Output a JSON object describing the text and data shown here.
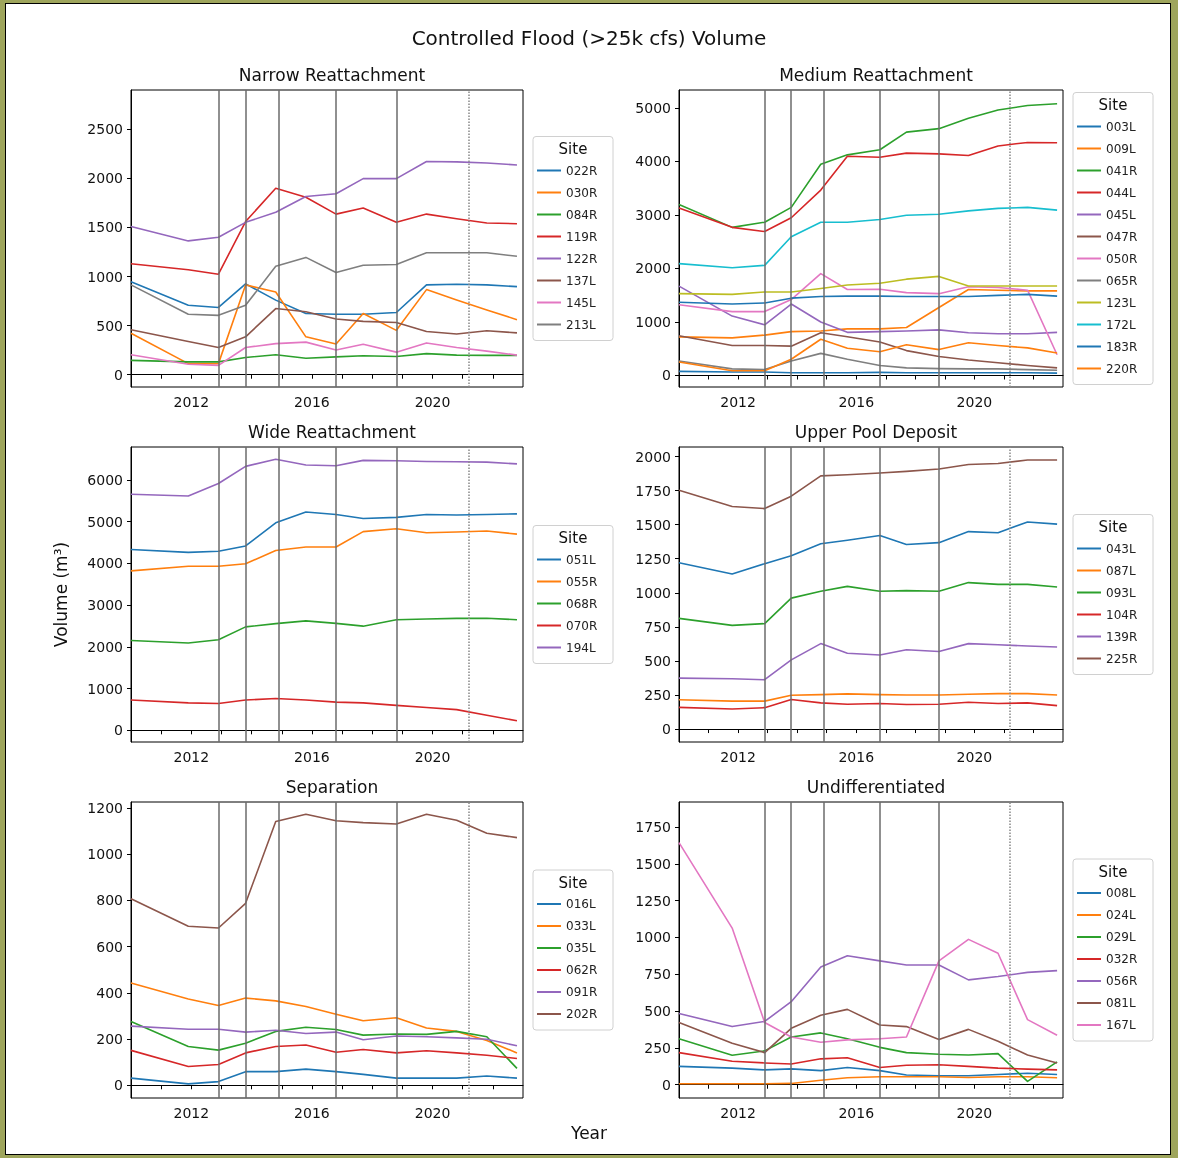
{
  "chart_data": [
    {
      "type": "line",
      "title": "Narrow Reattachment",
      "legend_title": "Site",
      "legend": "right",
      "annotations": [
        "Controlled Flood (>25k cfs) Volume"
      ],
      "x": [
        2010,
        2011.9,
        2012.9,
        2013.8,
        2014.8,
        2015.8,
        2016.8,
        2017.7,
        2018.8,
        2019.8,
        2020.8,
        2021.8,
        2022.8
      ],
      "xlim": [
        2010,
        2023
      ],
      "xticks": [
        {
          "value": 2011,
          "label": null
        },
        2012,
        {
          "value": 2013,
          "label": null
        },
        {
          "value": 2014,
          "label": null
        },
        {
          "value": 2015,
          "label": null
        },
        2016,
        {
          "value": 2017,
          "label": null
        },
        {
          "value": 2018,
          "label": null
        },
        {
          "value": 2019,
          "label": null
        },
        2020,
        {
          "value": 2021,
          "label": null
        },
        {
          "value": 2022,
          "label": null
        }
      ],
      "ylim": [
        -125,
        2900
      ],
      "yticks": [
        0,
        500,
        1000,
        1500,
        2000,
        2500
      ],
      "ref_lines": [
        {
          "axis": "x",
          "value": 2012.9,
          "color": "#6b6b6b"
        },
        {
          "axis": "x",
          "value": 2013.8,
          "color": "#6b6b6b"
        },
        {
          "axis": "x",
          "value": 2014.9,
          "color": "#6b6b6b"
        },
        {
          "axis": "x",
          "value": 2016.8,
          "color": "#6b6b6b"
        },
        {
          "axis": "x",
          "value": 2018.8,
          "color": "#6b6b6b"
        },
        {
          "axis": "x",
          "value": 2021.2,
          "color": "#888888",
          "line_style": "dotted"
        }
      ],
      "series": [
        {
          "name": "022R",
          "color": "#1f77b4",
          "values": [
            947,
            707,
            685,
            925,
            760,
            623,
            616,
            616,
            634,
            915,
            922,
            915,
            897
          ]
        },
        {
          "name": "030R",
          "color": "#ff7f0e",
          "values": [
            423,
            113,
            113,
            915,
            842,
            386,
            313,
            623,
            452,
            867,
            760,
            660,
            561
          ]
        },
        {
          "name": "084R",
          "color": "#2ca02c",
          "values": [
            146,
            131,
            131,
            175,
            204,
            168,
            182,
            193,
            186,
            215,
            200,
            197,
            197
          ]
        },
        {
          "name": "119R",
          "color": "#d62728",
          "values": [
            1130,
            1070,
            1024,
            1560,
            1899,
            1808,
            1636,
            1698,
            1553,
            1636,
            1589,
            1545,
            1538
          ]
        },
        {
          "name": "122R",
          "color": "#9467bd",
          "values": [
            1509,
            1363,
            1400,
            1552,
            1655,
            1815,
            1844,
            1997,
            1997,
            2172,
            2168,
            2157,
            2136
          ]
        },
        {
          "name": "137L",
          "color": "#8c564b",
          "values": [
            459,
            339,
            277,
            386,
            674,
            641,
            568,
            543,
            532,
            441,
            415,
            448,
            426
          ]
        },
        {
          "name": "145L",
          "color": "#e377c2",
          "values": [
            204,
            106,
            95,
            277,
            317,
            332,
            251,
            310,
            230,
            324,
            277,
            240,
            200
          ]
        },
        {
          "name": "213L",
          "color": "#7f7f7f",
          "values": [
            915,
            616,
            605,
            707,
            1104,
            1195,
            1042,
            1115,
            1122,
            1243,
            1243,
            1243,
            1206
          ]
        }
      ]
    },
    {
      "type": "line",
      "title": "Medium Reattachment",
      "legend_title": "Site",
      "legend": "right",
      "x": [
        2010,
        2011.8,
        2012.9,
        2013.8,
        2014.8,
        2015.7,
        2016.8,
        2017.7,
        2018.8,
        2019.8,
        2020.8,
        2021.8,
        2022.8
      ],
      "xlim": [
        2010,
        2023
      ],
      "xticks": [
        {
          "value": 2011,
          "label": null
        },
        2012,
        {
          "value": 2013,
          "label": null
        },
        {
          "value": 2014,
          "label": null
        },
        {
          "value": 2015,
          "label": null
        },
        2016,
        {
          "value": 2017,
          "label": null
        },
        {
          "value": 2018,
          "label": null
        },
        {
          "value": 2019,
          "label": null
        },
        2020,
        {
          "value": 2021,
          "label": null
        },
        {
          "value": 2022,
          "label": null
        }
      ],
      "ylim": [
        -215,
        5335
      ],
      "yticks": [
        0,
        1000,
        2000,
        3000,
        4000,
        5000
      ],
      "ref_lines": [
        {
          "axis": "x",
          "value": 2012.9,
          "color": "#6b6b6b"
        },
        {
          "axis": "x",
          "value": 2013.8,
          "color": "#6b6b6b"
        },
        {
          "axis": "x",
          "value": 2014.9,
          "color": "#6b6b6b"
        },
        {
          "axis": "x",
          "value": 2016.8,
          "color": "#6b6b6b"
        },
        {
          "axis": "x",
          "value": 2018.8,
          "color": "#6b6b6b"
        },
        {
          "axis": "x",
          "value": 2021.2,
          "color": "#888888",
          "line_style": "dotted"
        }
      ],
      "series": [
        {
          "name": "003L",
          "color": "#1f77b4",
          "values": [
            77,
            65,
            65,
            52,
            52,
            52,
            58,
            52,
            52,
            52,
            52,
            52,
            45
          ]
        },
        {
          "name": "009L",
          "color": "#ff7f0e",
          "values": [
            722,
            703,
            755,
            819,
            832,
            871,
            871,
            897,
            1271,
            1606,
            1594,
            1581,
            1581
          ]
        },
        {
          "name": "041R",
          "color": "#2ca02c",
          "values": [
            3194,
            2768,
            2865,
            3142,
            3948,
            4123,
            4219,
            4548,
            4613,
            4806,
            4961,
            5045,
            5077
          ]
        },
        {
          "name": "044L",
          "color": "#d62728",
          "values": [
            3129,
            2768,
            2690,
            2948,
            3465,
            4097,
            4077,
            4155,
            4142,
            4110,
            4290,
            4355,
            4348
          ]
        },
        {
          "name": "045L",
          "color": "#9467bd",
          "values": [
            1671,
            1110,
            948,
            1335,
            1000,
            806,
            819,
            832,
            852,
            800,
            781,
            781,
            806
          ]
        },
        {
          "name": "047R",
          "color": "#8c564b",
          "values": [
            742,
            561,
            561,
            548,
            800,
            723,
            626,
            465,
            355,
            290,
            239,
            187,
            142
          ]
        },
        {
          "name": "050R",
          "color": "#e377c2",
          "values": [
            1323,
            1194,
            1194,
            1419,
            1903,
            1606,
            1613,
            1548,
            1529,
            1658,
            1645,
            1594,
            387
          ]
        },
        {
          "name": "065R",
          "color": "#7f7f7f",
          "values": [
            271,
            123,
            110,
            271,
            413,
            303,
            187,
            142,
            129,
            123,
            123,
            110,
            97
          ]
        },
        {
          "name": "123L",
          "color": "#bcbd22",
          "values": [
            1529,
            1516,
            1561,
            1561,
            1626,
            1690,
            1723,
            1800,
            1852,
            1671,
            1671,
            1671,
            1671
          ]
        },
        {
          "name": "172L",
          "color": "#17becf",
          "values": [
            2090,
            2013,
            2058,
            2594,
            2865,
            2865,
            2916,
            2994,
            3013,
            3077,
            3123,
            3142,
            3090
          ]
        },
        {
          "name": "183R",
          "color": "#1f77b4",
          "values": [
            1368,
            1335,
            1355,
            1445,
            1477,
            1484,
            1484,
            1477,
            1477,
            1477,
            1497,
            1516,
            1484
          ]
        },
        {
          "name": "220R",
          "color": "#ff7f0e",
          "values": [
            252,
            90,
            90,
            303,
            677,
            510,
            445,
            574,
            484,
            613,
            561,
            516,
            419
          ]
        }
      ]
    },
    {
      "type": "line",
      "title": "Wide Reattachment",
      "legend_title": "Site",
      "legend": "right",
      "ylabel": "Volume (m³)",
      "x": [
        2010,
        2011.9,
        2012.9,
        2013.8,
        2014.8,
        2015.8,
        2016.8,
        2017.7,
        2018.8,
        2019.8,
        2020.8,
        2021.8,
        2022.8
      ],
      "xlim": [
        2010,
        2023
      ],
      "xticks": [
        {
          "value": 2011,
          "label": null
        },
        2012,
        {
          "value": 2013,
          "label": null
        },
        {
          "value": 2014,
          "label": null
        },
        {
          "value": 2015,
          "label": null
        },
        2016,
        {
          "value": 2017,
          "label": null
        },
        {
          "value": 2018,
          "label": null
        },
        {
          "value": 2019,
          "label": null
        },
        2020,
        {
          "value": 2021,
          "label": null
        },
        {
          "value": 2022,
          "label": null
        }
      ],
      "ylim": [
        -280,
        6790
      ],
      "yticks": [
        0,
        1000,
        2000,
        3000,
        4000,
        5000,
        6000
      ],
      "ref_lines": [
        {
          "axis": "x",
          "value": 2012.9,
          "color": "#6b6b6b"
        },
        {
          "axis": "x",
          "value": 2013.8,
          "color": "#6b6b6b"
        },
        {
          "axis": "x",
          "value": 2014.9,
          "color": "#6b6b6b"
        },
        {
          "axis": "x",
          "value": 2016.8,
          "color": "#6b6b6b"
        },
        {
          "axis": "x",
          "value": 2018.8,
          "color": "#6b6b6b"
        },
        {
          "axis": "x",
          "value": 2021.2,
          "color": "#888888",
          "line_style": "dotted"
        }
      ],
      "series": [
        {
          "name": "051L",
          "color": "#1f77b4",
          "values": [
            4333,
            4265,
            4291,
            4419,
            4974,
            5231,
            5171,
            5077,
            5103,
            5171,
            5162,
            5171,
            5188
          ]
        },
        {
          "name": "055R",
          "color": "#ff7f0e",
          "values": [
            3821,
            3932,
            3932,
            3991,
            4308,
            4393,
            4393,
            4761,
            4829,
            4735,
            4752,
            4778,
            4701
          ]
        },
        {
          "name": "068R",
          "color": "#2ca02c",
          "values": [
            2154,
            2094,
            2171,
            2479,
            2556,
            2624,
            2564,
            2496,
            2650,
            2667,
            2684,
            2684,
            2650
          ]
        },
        {
          "name": "070R",
          "color": "#d62728",
          "values": [
            726,
            658,
            641,
            726,
            761,
            726,
            675,
            658,
            598,
            547,
            496,
            359,
            231
          ]
        },
        {
          "name": "194L",
          "color": "#9467bd",
          "values": [
            5658,
            5615,
            5915,
            6325,
            6496,
            6359,
            6342,
            6470,
            6462,
            6444,
            6436,
            6427,
            6385
          ]
        }
      ]
    },
    {
      "type": "line",
      "title": "Upper Pool Deposit",
      "legend_title": "Site",
      "legend": "right",
      "x": [
        2010,
        2011.8,
        2012.9,
        2013.8,
        2014.8,
        2015.7,
        2016.8,
        2017.7,
        2018.8,
        2019.8,
        2020.8,
        2021.8,
        2022.8
      ],
      "xlim": [
        2010,
        2023
      ],
      "xticks": [
        {
          "value": 2011,
          "label": null
        },
        2012,
        {
          "value": 2013,
          "label": null
        },
        {
          "value": 2014,
          "label": null
        },
        {
          "value": 2015,
          "label": null
        },
        2016,
        {
          "value": 2017,
          "label": null
        },
        {
          "value": 2018,
          "label": null
        },
        {
          "value": 2019,
          "label": null
        },
        2020,
        {
          "value": 2021,
          "label": null
        },
        {
          "value": 2022,
          "label": null
        }
      ],
      "ylim": [
        -95,
        2070
      ],
      "yticks": [
        0,
        250,
        500,
        750,
        1000,
        1250,
        1500,
        1750,
        2000
      ],
      "ref_lines": [
        {
          "axis": "x",
          "value": 2012.9,
          "color": "#6b6b6b"
        },
        {
          "axis": "x",
          "value": 2013.8,
          "color": "#6b6b6b"
        },
        {
          "axis": "x",
          "value": 2014.9,
          "color": "#6b6b6b"
        },
        {
          "axis": "x",
          "value": 2016.8,
          "color": "#6b6b6b"
        },
        {
          "axis": "x",
          "value": 2018.8,
          "color": "#6b6b6b"
        },
        {
          "axis": "x",
          "value": 2021.2,
          "color": "#888888",
          "line_style": "dotted"
        }
      ],
      "series": [
        {
          "name": "043L",
          "color": "#1f77b4",
          "values": [
            1221,
            1138,
            1214,
            1272,
            1360,
            1386,
            1421,
            1355,
            1368,
            1449,
            1441,
            1520,
            1504
          ]
        },
        {
          "name": "087L",
          "color": "#ff7f0e",
          "values": [
            215,
            205,
            205,
            248,
            253,
            258,
            253,
            250,
            250,
            255,
            260,
            260,
            250
          ]
        },
        {
          "name": "093L",
          "color": "#2ca02c",
          "values": [
            812,
            761,
            774,
            961,
            1011,
            1047,
            1011,
            1016,
            1011,
            1075,
            1062,
            1062,
            1042
          ]
        },
        {
          "name": "104R",
          "color": "#d62728",
          "values": [
            159,
            147,
            157,
            217,
            192,
            182,
            187,
            180,
            182,
            197,
            187,
            192,
            172
          ]
        },
        {
          "name": "139R",
          "color": "#9467bd",
          "values": [
            374,
            369,
            362,
            508,
            627,
            556,
            544,
            582,
            569,
            627,
            619,
            609,
            602
          ]
        },
        {
          "name": "225R",
          "color": "#8c564b",
          "values": [
            1752,
            1633,
            1618,
            1709,
            1858,
            1866,
            1879,
            1891,
            1909,
            1942,
            1949,
            1975,
            1975
          ]
        }
      ]
    },
    {
      "type": "line",
      "title": "Separation",
      "legend_title": "Site",
      "legend": "right",
      "xlabel": "Year",
      "x": [
        2010,
        2011.9,
        2012.9,
        2013.8,
        2014.8,
        2015.8,
        2016.8,
        2017.7,
        2018.8,
        2019.8,
        2020.8,
        2021.8,
        2022.8
      ],
      "xlim": [
        2010,
        2023
      ],
      "xticks": [
        {
          "value": 2011,
          "label": null
        },
        2012,
        {
          "value": 2013,
          "label": null
        },
        {
          "value": 2014,
          "label": null
        },
        {
          "value": 2015,
          "label": null
        },
        2016,
        {
          "value": 2017,
          "label": null
        },
        {
          "value": 2018,
          "label": null
        },
        {
          "value": 2019,
          "label": null
        },
        2020,
        {
          "value": 2021,
          "label": null
        },
        {
          "value": 2022,
          "label": null
        }
      ],
      "ylim": [
        -55,
        1225
      ],
      "yticks": [
        0,
        200,
        400,
        600,
        800,
        1000,
        1200
      ],
      "ref_lines": [
        {
          "axis": "x",
          "value": 2012.9,
          "color": "#6b6b6b"
        },
        {
          "axis": "x",
          "value": 2013.8,
          "color": "#6b6b6b"
        },
        {
          "axis": "x",
          "value": 2014.9,
          "color": "#6b6b6b"
        },
        {
          "axis": "x",
          "value": 2016.8,
          "color": "#6b6b6b"
        },
        {
          "axis": "x",
          "value": 2018.8,
          "color": "#6b6b6b"
        },
        {
          "axis": "x",
          "value": 2021.2,
          "color": "#888888",
          "line_style": "dotted"
        }
      ],
      "series": [
        {
          "name": "016L",
          "color": "#1f77b4",
          "values": [
            31,
            6,
            16,
            59,
            59,
            70,
            59,
            47,
            31,
            31,
            31,
            40,
            31
          ]
        },
        {
          "name": "033L",
          "color": "#ff7f0e",
          "values": [
            442,
            373,
            345,
            377,
            365,
            341,
            307,
            279,
            292,
            248,
            233,
            194,
            140
          ]
        },
        {
          "name": "035L",
          "color": "#2ca02c",
          "values": [
            276,
            168,
            152,
            182,
            233,
            251,
            241,
            217,
            222,
            220,
            233,
            210,
            73
          ]
        },
        {
          "name": "062R",
          "color": "#d62728",
          "values": [
            151,
            81,
            90,
            140,
            168,
            174,
            143,
            155,
            140,
            149,
            140,
            130,
            116
          ]
        },
        {
          "name": "091R",
          "color": "#9467bd",
          "values": [
            256,
            242,
            242,
            230,
            238,
            224,
            230,
            197,
            213,
            210,
            205,
            199,
            171
          ]
        },
        {
          "name": "202R",
          "color": "#8c564b",
          "values": [
            807,
            688,
            680,
            787,
            1141,
            1172,
            1144,
            1136,
            1130,
            1172,
            1146,
            1090,
            1071
          ]
        }
      ]
    },
    {
      "type": "line",
      "title": "Undifferentiated",
      "legend_title": "Site",
      "legend": "right",
      "x": [
        2010,
        2011.8,
        2012.9,
        2013.8,
        2014.8,
        2015.7,
        2016.8,
        2017.7,
        2018.8,
        2019.8,
        2020.8,
        2021.8,
        2022.8
      ],
      "xlim": [
        2010,
        2023
      ],
      "xticks": [
        {
          "value": 2011,
          "label": null
        },
        2012,
        {
          "value": 2013,
          "label": null
        },
        {
          "value": 2014,
          "label": null
        },
        {
          "value": 2015,
          "label": null
        },
        2016,
        {
          "value": 2017,
          "label": null
        },
        {
          "value": 2018,
          "label": null
        },
        {
          "value": 2019,
          "label": null
        },
        2020,
        {
          "value": 2021,
          "label": null
        },
        {
          "value": 2022,
          "label": null
        }
      ],
      "ylim": [
        -90,
        1920
      ],
      "yticks": [
        0,
        250,
        500,
        750,
        1000,
        1250,
        1500,
        1750
      ],
      "ref_lines": [
        {
          "axis": "x",
          "value": 2012.9,
          "color": "#6b6b6b"
        },
        {
          "axis": "x",
          "value": 2013.8,
          "color": "#6b6b6b"
        },
        {
          "axis": "x",
          "value": 2014.9,
          "color": "#6b6b6b"
        },
        {
          "axis": "x",
          "value": 2016.8,
          "color": "#6b6b6b"
        },
        {
          "axis": "x",
          "value": 2018.8,
          "color": "#6b6b6b"
        },
        {
          "axis": "x",
          "value": 2021.2,
          "color": "#888888",
          "line_style": "dotted"
        }
      ],
      "series": [
        {
          "name": "008L",
          "color": "#1f77b4",
          "values": [
            125,
            113,
            101,
            108,
            96,
            117,
            96,
            66,
            61,
            61,
            70,
            78,
            70
          ]
        },
        {
          "name": "024L",
          "color": "#ff7f0e",
          "values": [
            7,
            7,
            7,
            9,
            31,
            47,
            54,
            54,
            54,
            49,
            54,
            54,
            47
          ]
        },
        {
          "name": "029L",
          "color": "#2ca02c",
          "values": [
            312,
            200,
            230,
            324,
            352,
            312,
            254,
            218,
            207,
            202,
            211,
            23,
            155
          ]
        },
        {
          "name": "032R",
          "color": "#d62728",
          "values": [
            218,
            160,
            148,
            141,
            176,
            183,
            117,
            132,
            136,
            125,
            113,
            106,
            101
          ]
        },
        {
          "name": "056R",
          "color": "#9467bd",
          "values": [
            484,
            395,
            430,
            564,
            799,
            876,
            841,
            813,
            813,
            712,
            735,
            763,
            775
          ]
        },
        {
          "name": "081L",
          "color": "#8c564b",
          "values": [
            423,
            282,
            218,
            383,
            472,
            512,
            406,
            395,
            308,
            376,
            296,
            202,
            148
          ]
        },
        {
          "name": "167L",
          "color": "#e377c2",
          "values": [
            1644,
            1064,
            423,
            324,
            289,
            305,
            312,
            324,
            841,
            987,
            893,
            442,
            336
          ]
        }
      ]
    }
  ]
}
